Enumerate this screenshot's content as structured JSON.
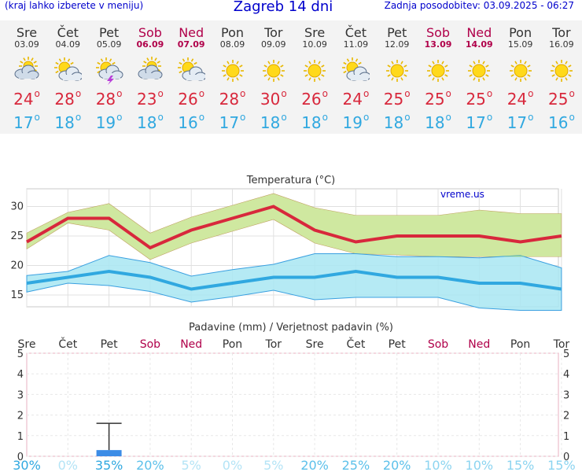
{
  "header": {
    "menu_hint": "(kraj lahko izberete v meniju)",
    "title": "Zagreb 14 dni",
    "updated": "Zadnja posodobitev: 03.09.2025 - 06:27"
  },
  "days": [
    {
      "name": "Sre",
      "date": "03.09",
      "weekend": false,
      "icon": "partly-cloudy-icon",
      "max": "24",
      "min": "17"
    },
    {
      "name": "Čet",
      "date": "04.09",
      "weekend": false,
      "icon": "sun-cloud-icon",
      "max": "28",
      "min": "18"
    },
    {
      "name": "Pet",
      "date": "05.09",
      "weekend": false,
      "icon": "thunderstorm-icon",
      "max": "28",
      "min": "19"
    },
    {
      "name": "Sob",
      "date": "06.09",
      "weekend": true,
      "icon": "partly-cloudy-icon",
      "max": "23",
      "min": "18"
    },
    {
      "name": "Ned",
      "date": "07.09",
      "weekend": true,
      "icon": "sun-cloud-icon",
      "max": "26",
      "min": "16"
    },
    {
      "name": "Pon",
      "date": "08.09",
      "weekend": false,
      "icon": "sun-icon",
      "max": "28",
      "min": "17"
    },
    {
      "name": "Tor",
      "date": "09.09",
      "weekend": false,
      "icon": "sun-icon",
      "max": "30",
      "min": "18"
    },
    {
      "name": "Sre",
      "date": "10.09",
      "weekend": false,
      "icon": "sun-icon",
      "max": "26",
      "min": "18"
    },
    {
      "name": "Čet",
      "date": "11.09",
      "weekend": false,
      "icon": "sun-cloud-icon",
      "max": "24",
      "min": "19"
    },
    {
      "name": "Pet",
      "date": "12.09",
      "weekend": false,
      "icon": "sun-icon",
      "max": "25",
      "min": "18"
    },
    {
      "name": "Sob",
      "date": "13.09",
      "weekend": true,
      "icon": "sun-icon",
      "max": "25",
      "min": "18"
    },
    {
      "name": "Ned",
      "date": "14.09",
      "weekend": true,
      "icon": "sun-icon",
      "max": "25",
      "min": "17"
    },
    {
      "name": "Pon",
      "date": "15.09",
      "weekend": false,
      "icon": "sun-icon",
      "max": "24",
      "min": "17"
    },
    {
      "name": "Tor",
      "date": "16.09",
      "weekend": false,
      "icon": "sun-icon",
      "max": "25",
      "min": "16"
    }
  ],
  "colors": {
    "max_line": "#d8283c",
    "min_line": "#30a8e0",
    "max_band": "#cfe8a0",
    "min_band": "#a8e6f2",
    "overlap": "#8fcf7f",
    "weekend": "#b0004a",
    "grid": "#c8c8c8",
    "precip_bar": "#3c8ce6"
  },
  "chart_data": [
    {
      "type": "line",
      "title": "Temperatura (°C)",
      "watermark": "vreme.us",
      "x": [
        "03.09",
        "04.09",
        "05.09",
        "06.09",
        "07.09",
        "08.09",
        "09.09",
        "10.09",
        "11.09",
        "12.09",
        "13.09",
        "14.09",
        "15.09",
        "16.09"
      ],
      "ylim": [
        13,
        33
      ],
      "yticks": [
        15,
        20,
        25,
        30
      ],
      "series": [
        {
          "key": "max",
          "values": [
            24,
            28,
            28,
            23,
            26,
            28,
            30,
            26,
            24,
            25,
            25,
            25,
            24,
            25
          ],
          "band_low": [
            22.8,
            27.2,
            26,
            21,
            23.8,
            25.8,
            27.8,
            23.8,
            22,
            21.8,
            21.5,
            21.5,
            21.5,
            21.5
          ],
          "band_high": [
            25.5,
            29,
            30.5,
            25.5,
            28.2,
            30.2,
            32.2,
            29.8,
            28.5,
            28.5,
            28.5,
            29.4,
            28.8,
            28.8
          ]
        },
        {
          "key": "min",
          "values": [
            17,
            18,
            19,
            18,
            16,
            17,
            18,
            18,
            19,
            18,
            18,
            17,
            17,
            16
          ],
          "band_low": [
            15.5,
            17,
            16.6,
            15.6,
            13.8,
            14.7,
            15.8,
            14.2,
            14.6,
            14.6,
            14.6,
            12.8,
            12.4,
            12.4
          ],
          "band_high": [
            18.3,
            19,
            21.7,
            20.5,
            18.2,
            19.3,
            20.2,
            22,
            22,
            21.5,
            21.5,
            21.3,
            21.7,
            19.6
          ]
        }
      ]
    },
    {
      "type": "bar",
      "title": "Padavine (mm) / Verjetnost padavin (%)",
      "categories": [
        "Sre",
        "Čet",
        "Pet",
        "Sob",
        "Ned",
        "Pon",
        "Tor",
        "Sre",
        "Čet",
        "Pet",
        "Sob",
        "Ned",
        "Pon",
        "Tor"
      ],
      "weekend": [
        false,
        false,
        false,
        true,
        true,
        false,
        false,
        false,
        false,
        false,
        true,
        true,
        false,
        false
      ],
      "ylim": [
        0,
        5
      ],
      "yticks": [
        0,
        1,
        2,
        3,
        4,
        5
      ],
      "values": [
        0,
        0,
        0.3,
        0,
        0,
        0,
        0,
        0,
        0,
        0,
        0,
        0,
        0,
        0
      ],
      "error_high": [
        0,
        0,
        1.6,
        0,
        0,
        0,
        0,
        0,
        0,
        0,
        0,
        0,
        0,
        0
      ],
      "probability": [
        "30%",
        "0%",
        "35%",
        "20%",
        "5%",
        "0%",
        "5%",
        "20%",
        "25%",
        "20%",
        "10%",
        "10%",
        "15%",
        "15%"
      ]
    }
  ]
}
